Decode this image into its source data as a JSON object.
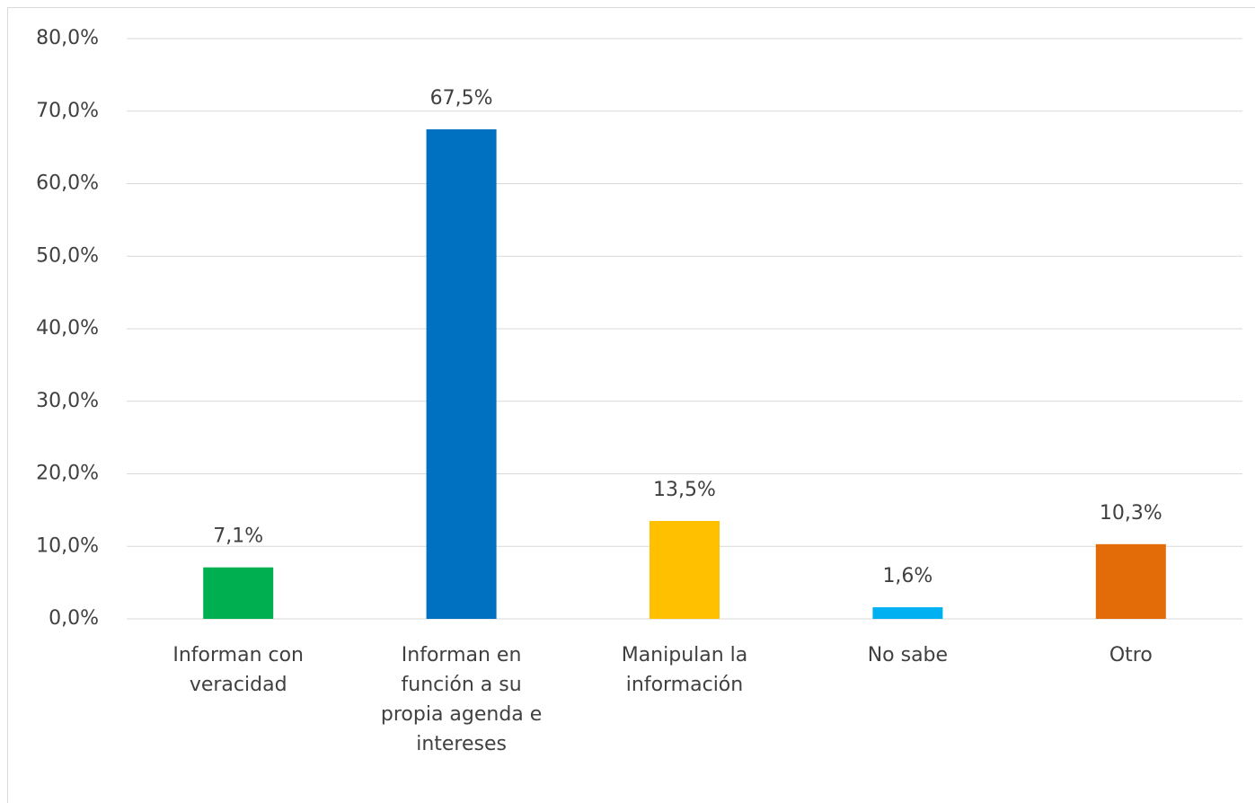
{
  "chart_data": {
    "type": "bar",
    "categories": [
      "Informan con veracidad",
      "Informan en función a su propia agenda e intereses",
      "Manipulan la información",
      "No sabe",
      "Otro"
    ],
    "values": [
      7.1,
      67.5,
      13.5,
      1.6,
      10.3
    ],
    "value_labels": [
      "7,1%",
      "67,5%",
      "13,5%",
      "1,6%",
      "10,3%"
    ],
    "colors": [
      "#00b050",
      "#0070c0",
      "#ffc000",
      "#00b0f0",
      "#e36c09"
    ],
    "ylim": [
      0,
      80
    ],
    "yticks": [
      {
        "value": 0,
        "label": "0,0%"
      },
      {
        "value": 10,
        "label": "10,0%"
      },
      {
        "value": 20,
        "label": "20,0%"
      },
      {
        "value": 30,
        "label": "30,0%"
      },
      {
        "value": 40,
        "label": "40,0%"
      },
      {
        "value": 50,
        "label": "50,0%"
      },
      {
        "value": 60,
        "label": "60,0%"
      },
      {
        "value": 70,
        "label": "70,0%"
      },
      {
        "value": 80,
        "label": "80,0%"
      }
    ],
    "grid": true
  }
}
